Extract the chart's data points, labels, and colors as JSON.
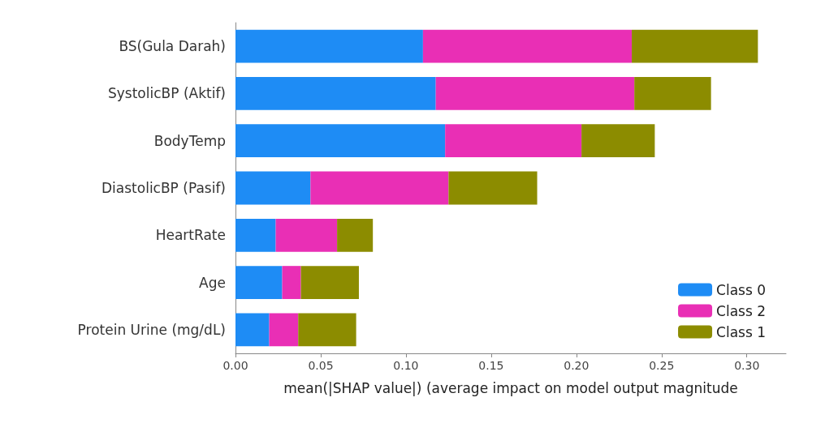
{
  "chart_data": {
    "type": "bar",
    "orientation": "horizontal",
    "stacked": true,
    "xlabel": "mean(|SHAP value|) (average impact on model output magnitude",
    "categories": [
      "BS(Gula Darah)",
      "SystolicBP (Aktif)",
      "BodyTemp",
      "DiastolicBP (Pasif)",
      "HeartRate",
      "Age",
      "Protein Urine (mg/dL)"
    ],
    "series": [
      {
        "name": "Class 0",
        "color": "#1e8cf5",
        "values": [
          0.11,
          0.1175,
          0.123,
          0.044,
          0.0236,
          0.0274,
          0.0198
        ]
      },
      {
        "name": "Class 2",
        "color": "#e92fb5",
        "values": [
          0.1225,
          0.1165,
          0.08,
          0.081,
          0.036,
          0.011,
          0.017
        ]
      },
      {
        "name": "Class 1",
        "color": "#8c8c00",
        "values": [
          0.074,
          0.045,
          0.043,
          0.052,
          0.021,
          0.034,
          0.034
        ]
      }
    ],
    "xlim": [
      0,
      0.323
    ],
    "xticks": [
      {
        "value": 0,
        "label": "0.00"
      },
      {
        "value": 0.05,
        "label": "0.05"
      },
      {
        "value": 0.1,
        "label": "0.10"
      },
      {
        "value": 0.15,
        "label": "0.15"
      },
      {
        "value": 0.2,
        "label": "0.20"
      },
      {
        "value": 0.25,
        "label": "0.25"
      },
      {
        "value": 0.3,
        "label": "0.30"
      }
    ],
    "grid": false,
    "legend": "bottom right"
  }
}
